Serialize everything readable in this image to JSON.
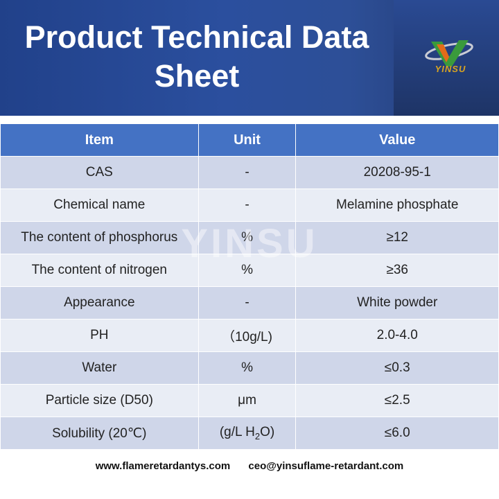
{
  "header": {
    "title_line1": "Product Technical Data",
    "title_line2": "Sheet",
    "logo_text": "YINSU",
    "accent": "#4472c4"
  },
  "watermark": "YINSU",
  "table": {
    "headers": [
      "Item",
      "Unit",
      "Value"
    ],
    "rows": [
      {
        "item": "CAS",
        "unit": "-",
        "value": "20208-95-1"
      },
      {
        "item": "Chemical name",
        "unit": "-",
        "value": "Melamine phosphate"
      },
      {
        "item": "The content of phosphorus",
        "unit": "%",
        "value": "≥12"
      },
      {
        "item": "The content of nitrogen",
        "unit": "%",
        "value": "≥36"
      },
      {
        "item": "Appearance",
        "unit": "-",
        "value": "White powder"
      },
      {
        "item": "PH",
        "unit": "（10g/L)",
        "value": "2.0-4.0"
      },
      {
        "item": "Water",
        "unit": "%",
        "value": "≤0.3"
      },
      {
        "item": "Particle size (D50)",
        "unit": "μm",
        "value": "≤2.5"
      },
      {
        "item": "Solubility (20℃)",
        "unit_prefix": "(g/L H",
        "unit_sub": "2",
        "unit_suffix": "O)",
        "value": "≤6.0"
      }
    ]
  },
  "footer": {
    "website": "www.flameretardantys.com",
    "email": "ceo@yinsuflame-retardant.com"
  }
}
